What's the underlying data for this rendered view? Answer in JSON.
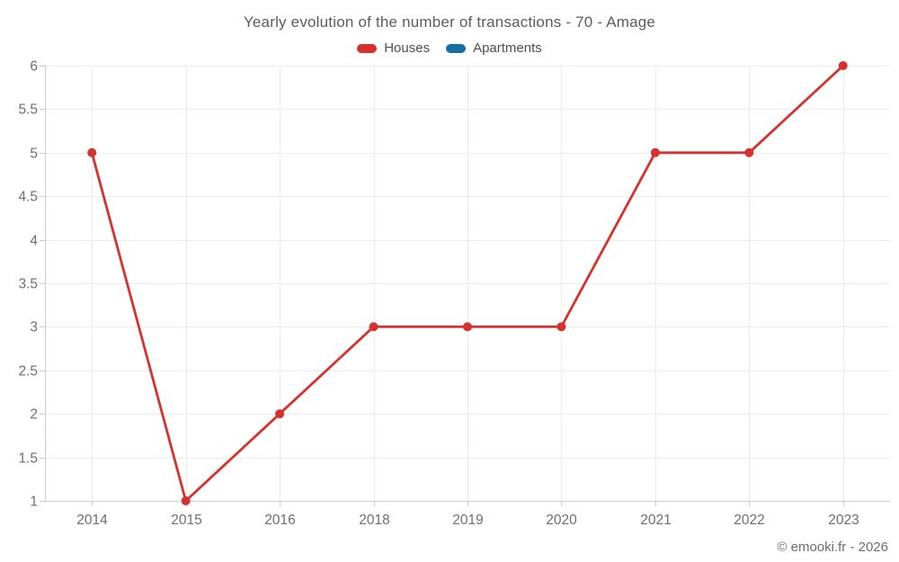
{
  "header": {
    "title": "Yearly evolution of the number of transactions - 70 - Amage"
  },
  "footer": {
    "credit": "© emooki.fr - 2026"
  },
  "styles": {
    "background": "#ffffff",
    "grid_color": "#ececec",
    "axis_color": "#cccccc",
    "tick_label_color": "#6e6e6e",
    "title_color": "#5c5c5c",
    "houses_color": "#d7312e",
    "apartments_color": "#1470a4"
  },
  "chart_data": {
    "type": "line",
    "title": "Yearly evolution of the number of transactions - 70 - Amage",
    "categories": [
      "2014",
      "2015",
      "2016",
      "2018",
      "2019",
      "2020",
      "2021",
      "2022",
      "2023"
    ],
    "series": [
      {
        "name": "Houses",
        "color": "#d7312e",
        "values": [
          5,
          1,
          2,
          3,
          3,
          3,
          5,
          5,
          6
        ]
      },
      {
        "name": "Apartments",
        "color": "#1470a4",
        "values": []
      }
    ],
    "xlabel": "",
    "ylabel": "",
    "ylim": [
      1,
      6
    ],
    "ytick_step": 0.5,
    "grid": true,
    "legend_position": "top",
    "marker_radius": 5,
    "line_width": 2.8
  }
}
